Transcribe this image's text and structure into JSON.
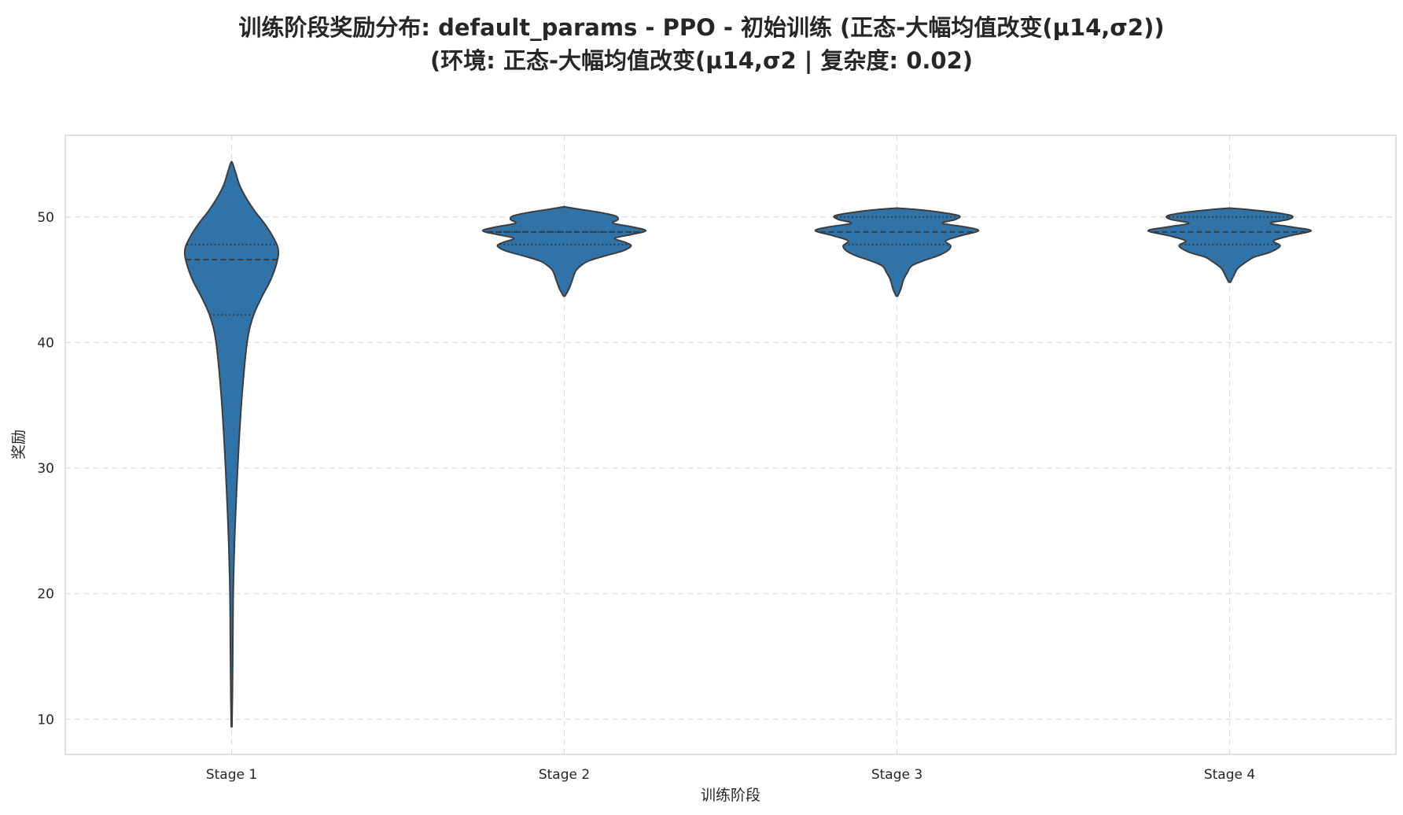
{
  "chart_data": {
    "type": "violin",
    "title_line1": "训练阶段奖励分布: default_params - PPO - 初始训练 (正态-大幅均值改变(μ14,σ2))",
    "title_line2": "(环境: 正态-大幅均值改变(μ14,σ2 | 复杂度: 0.02)",
    "xlabel": "训练阶段",
    "ylabel": "奖励",
    "categories": [
      "Stage 1",
      "Stage 2",
      "Stage 3",
      "Stage 4"
    ],
    "y_ticks": [
      10,
      20,
      30,
      40,
      50
    ],
    "ylim": [
      7.2,
      56.5
    ],
    "grid": true,
    "colors": {
      "fill": "#2f73a8",
      "edge": "#3d3d3d",
      "grid": "#dcdcdc",
      "frame": "#cccccc"
    },
    "violins": [
      {
        "category": "Stage 1",
        "min": 9.4,
        "max": 54.3,
        "q1": 42.2,
        "median": 46.6,
        "q3": 47.8,
        "profile": [
          [
            9.4,
            0.004
          ],
          [
            12,
            0.01
          ],
          [
            16,
            0.015
          ],
          [
            20,
            0.02
          ],
          [
            24,
            0.035
          ],
          [
            28,
            0.06
          ],
          [
            32,
            0.09
          ],
          [
            36,
            0.13
          ],
          [
            40,
            0.19
          ],
          [
            42,
            0.26
          ],
          [
            43.5,
            0.36
          ],
          [
            45,
            0.48
          ],
          [
            46.5,
            0.56
          ],
          [
            47.5,
            0.57
          ],
          [
            48.5,
            0.5
          ],
          [
            49.5,
            0.4
          ],
          [
            50.5,
            0.28
          ],
          [
            51.5,
            0.18
          ],
          [
            52.5,
            0.1
          ],
          [
            53.5,
            0.05
          ],
          [
            54.3,
            0.01
          ]
        ]
      },
      {
        "category": "Stage 2",
        "min": 43.7,
        "max": 50.8,
        "q1": 47.8,
        "median": 48.8,
        "q3": 48.8,
        "profile": [
          [
            43.7,
            0.01
          ],
          [
            44.3,
            0.06
          ],
          [
            45.0,
            0.1
          ],
          [
            45.7,
            0.14
          ],
          [
            46.1,
            0.2
          ],
          [
            46.5,
            0.3
          ],
          [
            46.9,
            0.5
          ],
          [
            47.3,
            0.72
          ],
          [
            47.7,
            0.82
          ],
          [
            48.0,
            0.74
          ],
          [
            48.3,
            0.62
          ],
          [
            48.6,
            0.82
          ],
          [
            48.9,
            1.0
          ],
          [
            49.2,
            0.84
          ],
          [
            49.5,
            0.6
          ],
          [
            49.8,
            0.66
          ],
          [
            50.1,
            0.62
          ],
          [
            50.4,
            0.4
          ],
          [
            50.6,
            0.2
          ],
          [
            50.8,
            0.01
          ]
        ]
      },
      {
        "category": "Stage 3",
        "min": 43.7,
        "max": 50.7,
        "q1": 47.8,
        "median": 48.8,
        "q3": 50.0,
        "profile": [
          [
            43.7,
            0.01
          ],
          [
            44.3,
            0.05
          ],
          [
            45.0,
            0.08
          ],
          [
            45.6,
            0.13
          ],
          [
            46.1,
            0.18
          ],
          [
            46.5,
            0.32
          ],
          [
            46.9,
            0.5
          ],
          [
            47.3,
            0.62
          ],
          [
            47.7,
            0.66
          ],
          [
            48.1,
            0.6
          ],
          [
            48.5,
            0.78
          ],
          [
            48.9,
            1.0
          ],
          [
            49.2,
            0.84
          ],
          [
            49.5,
            0.56
          ],
          [
            49.8,
            0.72
          ],
          [
            50.1,
            0.76
          ],
          [
            50.4,
            0.5
          ],
          [
            50.6,
            0.22
          ],
          [
            50.7,
            0.01
          ]
        ]
      },
      {
        "category": "Stage 4",
        "min": 44.8,
        "max": 50.7,
        "q1": 47.8,
        "median": 48.8,
        "q3": 50.0,
        "profile": [
          [
            44.8,
            0.01
          ],
          [
            45.3,
            0.05
          ],
          [
            45.9,
            0.1
          ],
          [
            46.4,
            0.2
          ],
          [
            46.8,
            0.3
          ],
          [
            47.2,
            0.5
          ],
          [
            47.7,
            0.62
          ],
          [
            48.1,
            0.54
          ],
          [
            48.5,
            0.74
          ],
          [
            48.9,
            1.0
          ],
          [
            49.2,
            0.76
          ],
          [
            49.5,
            0.5
          ],
          [
            49.8,
            0.72
          ],
          [
            50.1,
            0.76
          ],
          [
            50.4,
            0.5
          ],
          [
            50.6,
            0.2
          ],
          [
            50.7,
            0.01
          ]
        ]
      }
    ]
  }
}
